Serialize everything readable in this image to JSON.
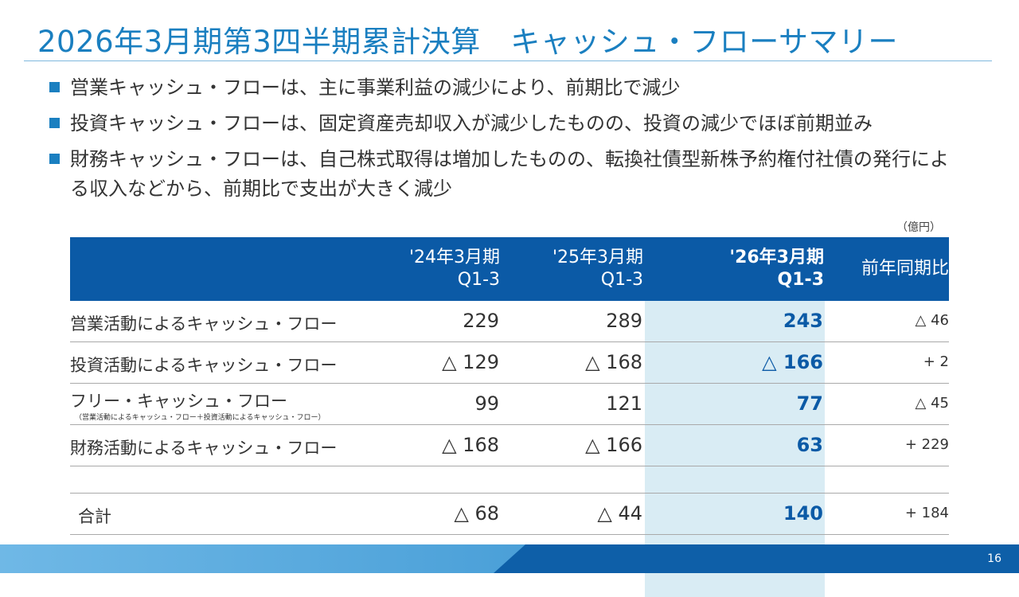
{
  "title": "2026年3月期第3四半期累計決算　キャッシュ・フローサマリー",
  "bullets": [
    "営業キャッシュ・フローは、主に事業利益の減少により、前期比で減少",
    "投資キャッシュ・フローは、固定資産売却収入が減少したものの、投資の減少でほぼ前期並み",
    "財務キャッシュ・フローは、自己株式取得は増加したものの、転換社債型新株予約権付社債の発行による収入などから、前期比で支出が大きく減少"
  ],
  "unit": "（億円）",
  "table": {
    "headers": {
      "col1_line1": "'24年3月期",
      "col1_line2": "Q1-3",
      "col2_line1": "'25年3月期",
      "col2_line2": "Q1-3",
      "col3_line1": "'26年3月期",
      "col3_line2": "Q1-3",
      "col4": "前年同期比"
    },
    "rows": [
      {
        "label": "営業活動によるキャッシュ・フロー",
        "sub": "",
        "v1": "229",
        "v2": "289",
        "v3": "243",
        "v4": "△ 46"
      },
      {
        "label": "投資活動によるキャッシュ・フロー",
        "sub": "",
        "v1": "△ 129",
        "v2": "△ 168",
        "v3": "△ 166",
        "v4": "+ 2"
      },
      {
        "label": "フリー・キャッシュ・フロー",
        "sub": "（営業活動によるキャッシュ・フロー＋投資活動によるキャッシュ・フロー）",
        "v1": "99",
        "v2": "121",
        "v3": "77",
        "v4": "△ 45"
      },
      {
        "label": "財務活動によるキャッシュ・フロー",
        "sub": "",
        "v1": "△ 168",
        "v2": "△ 166",
        "v3": "63",
        "v4": "+ 229"
      }
    ],
    "total": {
      "label": "合計",
      "v1": "△ 68",
      "v2": "△ 44",
      "v3": "140",
      "v4": "+ 184"
    }
  },
  "page_number": "16",
  "colors": {
    "accent": "#1a7fc0",
    "header_bg": "#0b5aa6",
    "highlight_bg": "#d9ecf4"
  }
}
